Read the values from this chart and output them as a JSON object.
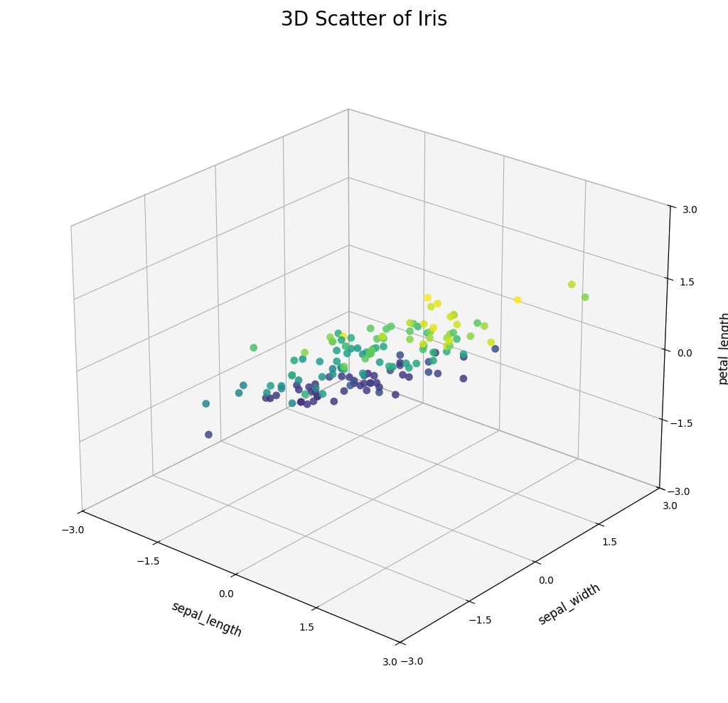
{
  "title": "3D Scatter of Iris",
  "xlabel": "sepal_length",
  "ylabel": "sepal_width",
  "zlabel": "petal_length",
  "xlim": [
    -3.0,
    3.0
  ],
  "ylim": [
    -3.0,
    3.0
  ],
  "zlim": [
    -3.0,
    3.0
  ],
  "xticks": [
    -3.0,
    -1.5,
    0.0,
    1.5,
    3.0
  ],
  "yticks": [
    -3.0,
    -1.5,
    0.0,
    1.5,
    3.0
  ],
  "zticks": [
    -3.0,
    -1.5,
    0.0,
    1.5,
    3.0
  ],
  "colormap": "viridis",
  "marker_size": 60,
  "title_fontsize": 20,
  "axis_label_fontsize": 12,
  "elev": 25,
  "azim": -50,
  "pane_color": "#ebebeb",
  "background_color": "#ffffff"
}
